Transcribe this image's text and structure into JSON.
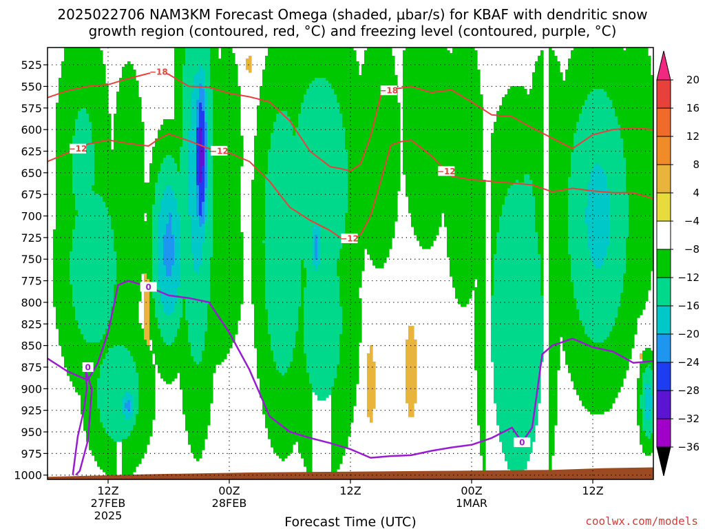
{
  "chart_data": {
    "type": "heatmap",
    "title_line1": "2025022706 NAM3KM Forecast Omega (shaded, μbar/s) for KBAF with dendritic snow",
    "title_line2": "growth region (contoured, red, °C) and freezing level (contoured, purple, °C)",
    "xlabel": "Forecast Time (UTC)",
    "credit": "coolwx.com/models",
    "x_range_hours": [
      0,
      60
    ],
    "y_levels": [
      525,
      550,
      575,
      600,
      625,
      650,
      675,
      700,
      725,
      750,
      775,
      800,
      825,
      850,
      875,
      900,
      925,
      950,
      975,
      1000
    ],
    "ylim": [
      1005,
      505
    ],
    "x_ticks": [
      {
        "hour": 6,
        "label": "12Z",
        "sub1": "27FEB",
        "sub2": "2025"
      },
      {
        "hour": 18,
        "label": "00Z",
        "sub1": "28FEB",
        "sub2": ""
      },
      {
        "hour": 30,
        "label": "12Z",
        "sub1": "",
        "sub2": ""
      },
      {
        "hour": 42,
        "label": "00Z",
        "sub1": "1MAR",
        "sub2": ""
      },
      {
        "hour": 54,
        "label": "12Z",
        "sub1": "",
        "sub2": ""
      }
    ],
    "grid": true,
    "colorbar": {
      "labels": [
        "20",
        "16",
        "12",
        "8",
        "4",
        "−4",
        "−8",
        "−12",
        "−16",
        "−20",
        "−24",
        "−28",
        "−32",
        "−36"
      ],
      "colors": [
        "#f02882",
        "#e8413c",
        "#f06a2a",
        "#f08c28",
        "#e8b43c",
        "#e8dc3c",
        "#ffffff",
        "#00c800",
        "#00d98c",
        "#00c8c8",
        "#1e96f0",
        "#1e3cf0",
        "#5a14d2",
        "#a000c8",
        "#a0a0a0",
        "#000000"
      ]
    },
    "omega_blobs": [
      {
        "x": 3.5,
        "p": 640,
        "wh": 2.2,
        "wp": 135,
        "v": -9
      },
      {
        "x": 4.5,
        "p": 760,
        "wh": 2.8,
        "wp": 110,
        "v": -11
      },
      {
        "x": 8.0,
        "p": 680,
        "wh": 1.6,
        "wp": 150,
        "v": -7
      },
      {
        "x": 7.0,
        "p": 905,
        "wh": 2.6,
        "wp": 70,
        "v": -11
      },
      {
        "x": 8.0,
        "p": 920,
        "wh": 0.7,
        "wp": 20,
        "v": -17
      },
      {
        "x": 12.0,
        "p": 740,
        "wh": 1.4,
        "wp": 90,
        "v": -17
      },
      {
        "x": 12.1,
        "p": 730,
        "wh": 0.5,
        "wp": 60,
        "v": -19
      },
      {
        "x": 14.8,
        "p": 650,
        "wh": 1.5,
        "wp": 210,
        "v": -14
      },
      {
        "x": 15.2,
        "p": 630,
        "wh": 0.55,
        "wp": 85,
        "v": -26
      },
      {
        "x": 15.2,
        "p": 690,
        "wh": 0.5,
        "wp": 30,
        "v": -21
      },
      {
        "x": 16.6,
        "p": 760,
        "wh": 2.4,
        "wp": 95,
        "v": -8
      },
      {
        "x": 17.8,
        "p": 625,
        "wh": 1.6,
        "wp": 140,
        "v": -6
      },
      {
        "x": 23.3,
        "p": 730,
        "wh": 2.1,
        "wp": 170,
        "v": -12
      },
      {
        "x": 27.0,
        "p": 660,
        "wh": 3.4,
        "wp": 150,
        "v": -11
      },
      {
        "x": 27.2,
        "p": 820,
        "wh": 2.8,
        "wp": 140,
        "v": -10
      },
      {
        "x": 26.6,
        "p": 735,
        "wh": 0.5,
        "wp": 30,
        "v": -18
      },
      {
        "x": 32.8,
        "p": 620,
        "wh": 1.8,
        "wp": 120,
        "v": -8
      },
      {
        "x": 37.5,
        "p": 580,
        "wh": 2.3,
        "wp": 150,
        "v": -7
      },
      {
        "x": 41.2,
        "p": 640,
        "wh": 1.7,
        "wp": 140,
        "v": -8
      },
      {
        "x": 46.5,
        "p": 830,
        "wh": 2.8,
        "wp": 190,
        "v": -12
      },
      {
        "x": 47.5,
        "p": 700,
        "wh": 1.5,
        "wp": 100,
        "v": -9
      },
      {
        "x": 49.5,
        "p": 640,
        "wh": 2.0,
        "wp": 130,
        "v": -7
      },
      {
        "x": 54.5,
        "p": 700,
        "wh": 3.0,
        "wp": 150,
        "v": -13
      },
      {
        "x": 58.3,
        "p": 650,
        "wh": 2.0,
        "wp": 160,
        "v": -7
      },
      {
        "x": 59.5,
        "p": 915,
        "wh": 0.7,
        "wp": 40,
        "v": -14
      }
    ],
    "omega_positive": [
      {
        "x": 20.0,
        "p": 524,
        "wh": 0.35,
        "wp": 12,
        "v": 6
      },
      {
        "x": 9.9,
        "p": 805,
        "wh": 0.4,
        "wp": 45,
        "v": 7
      },
      {
        "x": 13.9,
        "p": 790,
        "wh": 0.25,
        "wp": 40,
        "v": 5
      },
      {
        "x": 32.0,
        "p": 895,
        "wh": 0.45,
        "wp": 50,
        "v": 6
      },
      {
        "x": 36.0,
        "p": 880,
        "wh": 0.6,
        "wp": 60,
        "v": 6
      },
      {
        "x": 58.9,
        "p": 862,
        "wh": 0.2,
        "wp": 14,
        "v": 5
      }
    ],
    "isotherm_minus18": {
      "hour": [
        0,
        2,
        4,
        6,
        8,
        10,
        11,
        12,
        14,
        16,
        18,
        20,
        22,
        24,
        26,
        28,
        29,
        30,
        31,
        32,
        33,
        34,
        35,
        36,
        38,
        40,
        42,
        44,
        46,
        48,
        50,
        52,
        54,
        56,
        58,
        60
      ],
      "p": [
        563,
        555,
        550,
        548,
        541,
        535,
        533,
        536,
        550,
        551,
        558,
        562,
        568,
        590,
        625,
        643,
        645,
        648,
        640,
        608,
        561,
        553,
        552,
        550,
        557,
        554,
        568,
        583,
        585,
        598,
        610,
        622,
        606,
        600,
        598,
        600
      ],
      "label": "−18"
    },
    "isotherm_minus12": {
      "hour": [
        0,
        2,
        4,
        6,
        8,
        10,
        11,
        12,
        14,
        16,
        18,
        20,
        22,
        24,
        26,
        28,
        29,
        30,
        31,
        32,
        33,
        34,
        35,
        36,
        38,
        40,
        42,
        44,
        46,
        48,
        50,
        52,
        54,
        56,
        58,
        60
      ],
      "p": [
        637,
        627,
        617,
        612,
        616,
        619,
        611,
        605,
        613,
        622,
        627,
        637,
        660,
        690,
        705,
        717,
        725,
        726,
        722,
        700,
        660,
        618,
        614,
        612,
        630,
        654,
        658,
        660,
        662,
        664,
        672,
        668,
        671,
        673,
        673,
        680
      ],
      "label": "−12"
    },
    "freezing_level": {
      "hour": [
        0,
        2,
        4,
        5,
        6,
        7,
        8,
        10,
        12,
        14,
        16,
        18,
        20,
        22,
        24,
        26,
        28,
        30,
        32,
        34,
        36,
        38,
        40,
        42,
        44,
        46,
        47,
        48,
        49,
        50,
        52,
        54,
        56,
        58,
        60
      ],
      "p": [
        865,
        880,
        890,
        870,
        835,
        780,
        775,
        782,
        792,
        795,
        800,
        835,
        878,
        932,
        950,
        957,
        963,
        970,
        980,
        978,
        977,
        972,
        968,
        965,
        957,
        945,
        962,
        945,
        860,
        850,
        842,
        852,
        857,
        870,
        868
      ],
      "label": "0"
    }
  }
}
